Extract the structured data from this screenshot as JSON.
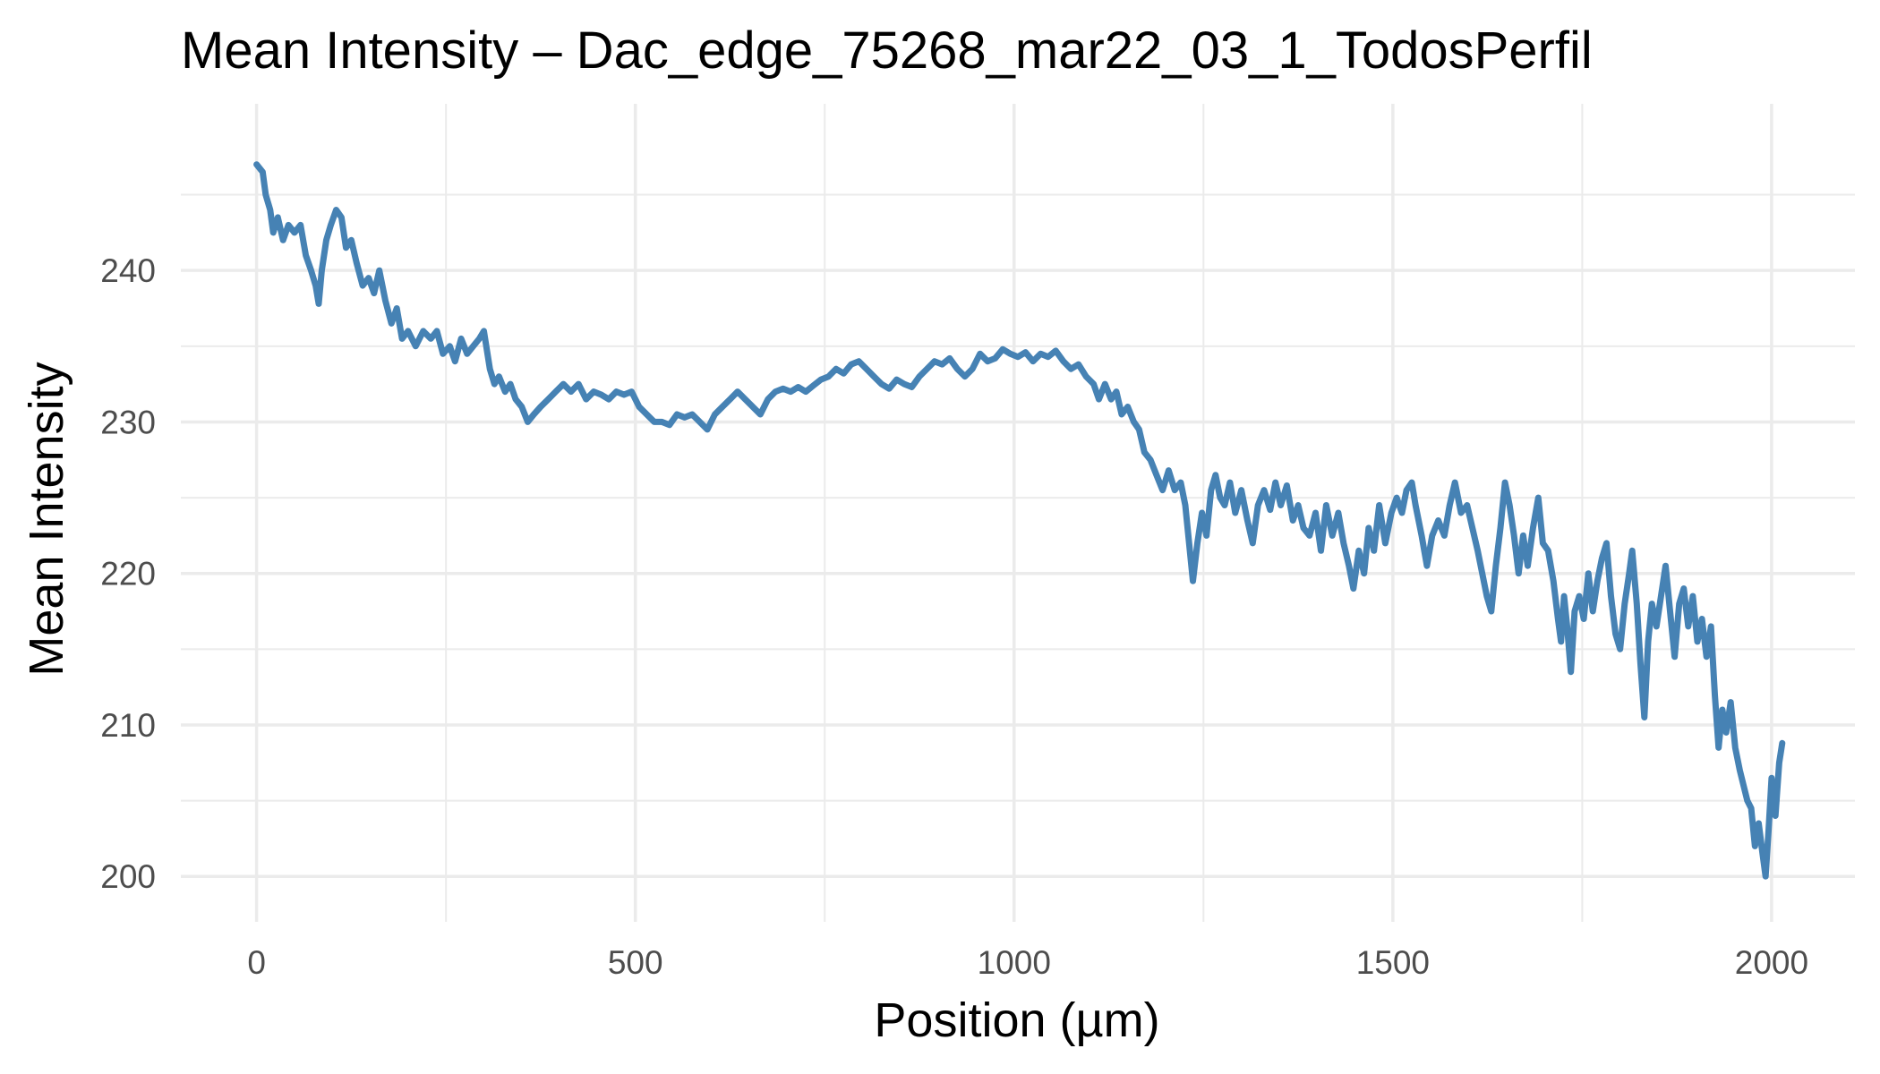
{
  "chart_data": {
    "type": "line",
    "title": "Mean Intensity – Dac_edge_75268_mar22_03_1_TodosPerfil",
    "xlabel": "Position (µm)",
    "ylabel": "Mean Intensity",
    "xlim": [
      -100,
      2110
    ],
    "ylim": [
      197,
      251
    ],
    "x_ticks": [
      0,
      500,
      1000,
      1500,
      2000
    ],
    "y_ticks": [
      200,
      210,
      220,
      230,
      240
    ],
    "grid": true,
    "legend": "none",
    "colors": {
      "line": "#4682b4",
      "grid": "#ebebeb"
    },
    "series": [
      {
        "points": [
          [
            0,
            247
          ],
          [
            8,
            246.5
          ],
          [
            12,
            245
          ],
          [
            18,
            244
          ],
          [
            22,
            242.5
          ],
          [
            28,
            243.5
          ],
          [
            35,
            242
          ],
          [
            42,
            243
          ],
          [
            50,
            242.5
          ],
          [
            58,
            243
          ],
          [
            65,
            241
          ],
          [
            72,
            240
          ],
          [
            78,
            239
          ],
          [
            82,
            237.8
          ],
          [
            86,
            240
          ],
          [
            92,
            242
          ],
          [
            98,
            243
          ],
          [
            105,
            244
          ],
          [
            112,
            243.5
          ],
          [
            118,
            241.5
          ],
          [
            125,
            242
          ],
          [
            132,
            240.5
          ],
          [
            140,
            239
          ],
          [
            148,
            239.5
          ],
          [
            155,
            238.5
          ],
          [
            162,
            240
          ],
          [
            170,
            238
          ],
          [
            178,
            236.5
          ],
          [
            185,
            237.5
          ],
          [
            192,
            235.5
          ],
          [
            200,
            236
          ],
          [
            210,
            235
          ],
          [
            220,
            236
          ],
          [
            230,
            235.5
          ],
          [
            238,
            236
          ],
          [
            246,
            234.5
          ],
          [
            255,
            235
          ],
          [
            262,
            234
          ],
          [
            270,
            235.5
          ],
          [
            278,
            234.5
          ],
          [
            286,
            235
          ],
          [
            294,
            235.5
          ],
          [
            300,
            236
          ],
          [
            308,
            233.5
          ],
          [
            314,
            232.5
          ],
          [
            320,
            233
          ],
          [
            328,
            232
          ],
          [
            335,
            232.5
          ],
          [
            342,
            231.5
          ],
          [
            350,
            231
          ],
          [
            358,
            230
          ],
          [
            366,
            230.5
          ],
          [
            375,
            231
          ],
          [
            385,
            231.5
          ],
          [
            395,
            232
          ],
          [
            405,
            232.5
          ],
          [
            415,
            232
          ],
          [
            425,
            232.5
          ],
          [
            435,
            231.5
          ],
          [
            445,
            232
          ],
          [
            455,
            231.8
          ],
          [
            465,
            231.5
          ],
          [
            475,
            232
          ],
          [
            485,
            231.8
          ],
          [
            495,
            232
          ],
          [
            505,
            231
          ],
          [
            515,
            230.5
          ],
          [
            525,
            230
          ],
          [
            535,
            230
          ],
          [
            545,
            229.8
          ],
          [
            555,
            230.5
          ],
          [
            565,
            230.3
          ],
          [
            575,
            230.5
          ],
          [
            585,
            230
          ],
          [
            595,
            229.5
          ],
          [
            605,
            230.5
          ],
          [
            615,
            231
          ],
          [
            625,
            231.5
          ],
          [
            635,
            232
          ],
          [
            645,
            231.5
          ],
          [
            655,
            231
          ],
          [
            665,
            230.5
          ],
          [
            675,
            231.5
          ],
          [
            685,
            232
          ],
          [
            695,
            232.2
          ],
          [
            705,
            232
          ],
          [
            715,
            232.3
          ],
          [
            725,
            232
          ],
          [
            735,
            232.4
          ],
          [
            745,
            232.8
          ],
          [
            755,
            233
          ],
          [
            765,
            233.5
          ],
          [
            775,
            233.2
          ],
          [
            785,
            233.8
          ],
          [
            795,
            234
          ],
          [
            805,
            233.5
          ],
          [
            815,
            233
          ],
          [
            825,
            232.5
          ],
          [
            835,
            232.2
          ],
          [
            845,
            232.8
          ],
          [
            855,
            232.5
          ],
          [
            865,
            232.3
          ],
          [
            875,
            233
          ],
          [
            885,
            233.5
          ],
          [
            895,
            234
          ],
          [
            905,
            233.8
          ],
          [
            915,
            234.2
          ],
          [
            925,
            233.5
          ],
          [
            935,
            233
          ],
          [
            945,
            233.5
          ],
          [
            955,
            234.5
          ],
          [
            965,
            234
          ],
          [
            975,
            234.2
          ],
          [
            985,
            234.8
          ],
          [
            995,
            234.5
          ],
          [
            1005,
            234.3
          ],
          [
            1015,
            234.6
          ],
          [
            1025,
            234
          ],
          [
            1035,
            234.5
          ],
          [
            1045,
            234.3
          ],
          [
            1055,
            234.7
          ],
          [
            1065,
            234
          ],
          [
            1075,
            233.5
          ],
          [
            1085,
            233.8
          ],
          [
            1095,
            233
          ],
          [
            1105,
            232.5
          ],
          [
            1112,
            231.5
          ],
          [
            1120,
            232.5
          ],
          [
            1128,
            231.5
          ],
          [
            1135,
            232
          ],
          [
            1142,
            230.5
          ],
          [
            1150,
            231
          ],
          [
            1158,
            230
          ],
          [
            1165,
            229.5
          ],
          [
            1172,
            228
          ],
          [
            1180,
            227.5
          ],
          [
            1188,
            226.5
          ],
          [
            1196,
            225.5
          ],
          [
            1204,
            226.8
          ],
          [
            1212,
            225.5
          ],
          [
            1220,
            226
          ],
          [
            1226,
            224.5
          ],
          [
            1232,
            221.5
          ],
          [
            1236,
            219.5
          ],
          [
            1242,
            222
          ],
          [
            1248,
            224
          ],
          [
            1254,
            222.5
          ],
          [
            1260,
            225.5
          ],
          [
            1266,
            226.5
          ],
          [
            1272,
            225
          ],
          [
            1278,
            224.5
          ],
          [
            1285,
            226
          ],
          [
            1292,
            224
          ],
          [
            1300,
            225.5
          ],
          [
            1308,
            223.5
          ],
          [
            1315,
            222
          ],
          [
            1322,
            224.5
          ],
          [
            1330,
            225.5
          ],
          [
            1338,
            224.2
          ],
          [
            1345,
            226
          ],
          [
            1352,
            224.5
          ],
          [
            1360,
            225.8
          ],
          [
            1368,
            223.5
          ],
          [
            1375,
            224.5
          ],
          [
            1382,
            223
          ],
          [
            1390,
            222.5
          ],
          [
            1398,
            224
          ],
          [
            1405,
            221.5
          ],
          [
            1412,
            224.5
          ],
          [
            1420,
            222.5
          ],
          [
            1428,
            224
          ],
          [
            1435,
            222
          ],
          [
            1442,
            220.5
          ],
          [
            1448,
            219
          ],
          [
            1455,
            221.5
          ],
          [
            1462,
            220
          ],
          [
            1468,
            223
          ],
          [
            1475,
            221.5
          ],
          [
            1482,
            224.5
          ],
          [
            1490,
            222
          ],
          [
            1498,
            224
          ],
          [
            1505,
            225
          ],
          [
            1512,
            224
          ],
          [
            1518,
            225.5
          ],
          [
            1525,
            226
          ],
          [
            1530,
            224.5
          ],
          [
            1538,
            222.5
          ],
          [
            1545,
            220.5
          ],
          [
            1552,
            222.5
          ],
          [
            1560,
            223.5
          ],
          [
            1568,
            222.5
          ],
          [
            1575,
            224.5
          ],
          [
            1582,
            226
          ],
          [
            1590,
            224
          ],
          [
            1598,
            224.5
          ],
          [
            1605,
            223
          ],
          [
            1612,
            221.5
          ],
          [
            1618,
            220
          ],
          [
            1624,
            218.5
          ],
          [
            1630,
            217.5
          ],
          [
            1636,
            220.5
          ],
          [
            1642,
            223
          ],
          [
            1648,
            226
          ],
          [
            1654,
            224.5
          ],
          [
            1660,
            222.5
          ],
          [
            1666,
            220
          ],
          [
            1672,
            222.5
          ],
          [
            1678,
            220.5
          ],
          [
            1685,
            223
          ],
          [
            1692,
            225
          ],
          [
            1698,
            222
          ],
          [
            1705,
            221.5
          ],
          [
            1712,
            219.5
          ],
          [
            1718,
            217
          ],
          [
            1722,
            215.5
          ],
          [
            1726,
            218.5
          ],
          [
            1730,
            216.5
          ],
          [
            1735,
            213.5
          ],
          [
            1740,
            217.5
          ],
          [
            1746,
            218.5
          ],
          [
            1752,
            217
          ],
          [
            1758,
            220
          ],
          [
            1764,
            217.5
          ],
          [
            1770,
            219.5
          ],
          [
            1776,
            221
          ],
          [
            1782,
            222
          ],
          [
            1788,
            218.5
          ],
          [
            1794,
            216
          ],
          [
            1800,
            215
          ],
          [
            1806,
            218
          ],
          [
            1812,
            220
          ],
          [
            1816,
            221.5
          ],
          [
            1822,
            218
          ],
          [
            1827,
            214
          ],
          [
            1832,
            210.5
          ],
          [
            1837,
            215.5
          ],
          [
            1842,
            218
          ],
          [
            1848,
            216.5
          ],
          [
            1854,
            218.5
          ],
          [
            1860,
            220.5
          ],
          [
            1866,
            217.5
          ],
          [
            1872,
            214.5
          ],
          [
            1878,
            218
          ],
          [
            1884,
            219
          ],
          [
            1890,
            216.5
          ],
          [
            1896,
            218.5
          ],
          [
            1902,
            215.5
          ],
          [
            1908,
            217
          ],
          [
            1914,
            214.5
          ],
          [
            1920,
            216.5
          ],
          [
            1925,
            212
          ],
          [
            1930,
            208.5
          ],
          [
            1935,
            211
          ],
          [
            1940,
            209.5
          ],
          [
            1946,
            211.5
          ],
          [
            1952,
            208.5
          ],
          [
            1958,
            207
          ],
          [
            1963,
            206
          ],
          [
            1968,
            205
          ],
          [
            1973,
            204.5
          ],
          [
            1978,
            202
          ],
          [
            1983,
            203.5
          ],
          [
            1988,
            201.5
          ],
          [
            1992,
            200
          ],
          [
            1996,
            203
          ],
          [
            2000,
            206.5
          ],
          [
            2005,
            204
          ],
          [
            2010,
            207.5
          ],
          [
            2014,
            208.8
          ]
        ]
      }
    ]
  }
}
